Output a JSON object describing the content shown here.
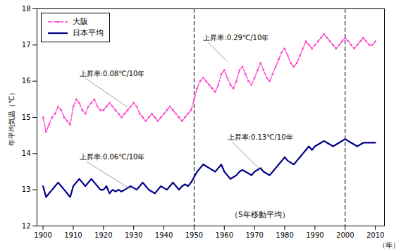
{
  "chart_data": {
    "type": "line",
    "xlabel": "（年）",
    "ylabel": "年平均気温（℃）",
    "x": [
      1900,
      1901,
      1902,
      1903,
      1904,
      1905,
      1906,
      1907,
      1908,
      1909,
      1910,
      1911,
      1912,
      1913,
      1914,
      1915,
      1916,
      1917,
      1918,
      1919,
      1920,
      1921,
      1922,
      1923,
      1924,
      1925,
      1926,
      1927,
      1928,
      1929,
      1930,
      1931,
      1932,
      1933,
      1934,
      1935,
      1936,
      1937,
      1938,
      1939,
      1940,
      1941,
      1942,
      1943,
      1944,
      1945,
      1946,
      1947,
      1948,
      1949,
      1950,
      1951,
      1952,
      1953,
      1954,
      1955,
      1956,
      1957,
      1958,
      1959,
      1960,
      1961,
      1962,
      1963,
      1964,
      1965,
      1966,
      1967,
      1968,
      1969,
      1970,
      1971,
      1972,
      1973,
      1974,
      1975,
      1976,
      1977,
      1978,
      1979,
      1980,
      1981,
      1982,
      1983,
      1984,
      1985,
      1986,
      1987,
      1988,
      1989,
      1990,
      1991,
      1992,
      1993,
      1994,
      1995,
      1996,
      1997,
      1998,
      1999,
      2000,
      2001,
      2002,
      2003,
      2004,
      2005,
      2006,
      2007,
      2008,
      2009,
      2010
    ],
    "series": [
      {
        "name": "大阪",
        "color": "#FF44CC",
        "line_style": "dashed",
        "marker": "circle",
        "values": [
          15.0,
          14.6,
          14.8,
          15.0,
          15.1,
          15.3,
          15.2,
          15.0,
          14.9,
          14.8,
          15.3,
          15.5,
          15.4,
          15.2,
          15.1,
          15.3,
          15.4,
          15.5,
          15.3,
          15.2,
          15.2,
          15.3,
          15.4,
          15.3,
          15.2,
          15.1,
          15.0,
          15.1,
          15.2,
          15.3,
          15.4,
          15.3,
          15.1,
          15.0,
          14.9,
          15.0,
          15.1,
          15.0,
          14.9,
          15.0,
          15.1,
          15.2,
          15.3,
          15.2,
          15.1,
          15.0,
          14.9,
          15.0,
          15.1,
          15.2,
          15.5,
          15.8,
          16.0,
          16.1,
          16.0,
          15.9,
          15.8,
          15.7,
          15.9,
          16.2,
          16.3,
          16.1,
          15.9,
          15.8,
          16.0,
          16.3,
          16.4,
          16.2,
          16.0,
          15.9,
          16.1,
          16.3,
          16.5,
          16.3,
          16.1,
          16.0,
          16.2,
          16.4,
          16.6,
          16.8,
          16.9,
          16.7,
          16.5,
          16.4,
          16.5,
          16.7,
          16.9,
          17.1,
          17.0,
          16.9,
          17.0,
          17.1,
          17.2,
          17.3,
          17.2,
          17.1,
          17.0,
          16.9,
          17.0,
          17.1,
          17.2,
          17.1,
          17.0,
          16.9,
          17.0,
          17.1,
          17.2,
          17.1,
          17.0,
          17.0,
          17.1
        ]
      },
      {
        "name": "日本平均",
        "color": "#00008B",
        "line_style": "solid",
        "values": [
          13.1,
          12.8,
          12.9,
          13.0,
          13.1,
          13.2,
          13.1,
          13.0,
          12.9,
          12.8,
          13.1,
          13.2,
          13.3,
          13.2,
          13.1,
          13.2,
          13.3,
          13.2,
          13.1,
          13.0,
          13.0,
          13.1,
          12.9,
          13.0,
          12.95,
          13.0,
          12.95,
          13.0,
          13.05,
          13.1,
          13.05,
          13.0,
          13.1,
          13.2,
          13.1,
          13.0,
          12.95,
          12.9,
          13.0,
          13.1,
          13.05,
          13.0,
          13.1,
          13.2,
          13.1,
          13.0,
          13.1,
          13.15,
          13.1,
          13.2,
          13.35,
          13.5,
          13.6,
          13.7,
          13.65,
          13.6,
          13.55,
          13.5,
          13.6,
          13.7,
          13.5,
          13.4,
          13.3,
          13.35,
          13.4,
          13.5,
          13.55,
          13.5,
          13.45,
          13.4,
          13.5,
          13.55,
          13.6,
          13.5,
          13.45,
          13.4,
          13.5,
          13.6,
          13.7,
          13.8,
          13.9,
          13.8,
          13.75,
          13.7,
          13.8,
          13.9,
          14.0,
          14.1,
          14.2,
          14.1,
          14.2,
          14.25,
          14.3,
          14.35,
          14.3,
          14.25,
          14.2,
          14.25,
          14.3,
          14.35,
          14.4,
          14.35,
          14.3,
          14.25,
          14.2,
          14.25,
          14.3,
          14.3,
          14.3,
          14.3,
          14.3
        ]
      }
    ],
    "xlim": [
      1898,
      2013
    ],
    "ylim": [
      12,
      18
    ],
    "xticks": [
      1900,
      1910,
      1920,
      1930,
      1940,
      1950,
      1960,
      1970,
      1980,
      1990,
      2000,
      2010
    ],
    "yticks": [
      12,
      13,
      14,
      15,
      16,
      17,
      18
    ],
    "vlines": [
      1950,
      2000
    ],
    "legend": "upper left",
    "grid": false,
    "annotations": [
      {
        "text": "上昇率:0.08℃/10年",
        "xy": [
          1928,
          15.28
        ],
        "xytext": [
          1912,
          16.2
        ]
      },
      {
        "text": "上昇率:0.06℃/10年",
        "xy": [
          1929,
          13.02
        ],
        "xytext": [
          1912,
          13.9
        ]
      },
      {
        "text": "上昇率:0.29℃/10年",
        "xy": [
          1961,
          16.55
        ],
        "xytext": [
          1953,
          17.2
        ]
      },
      {
        "text": "上昇率:0.13℃/10年",
        "xy": [
          1972,
          13.55
        ],
        "xytext": [
          1961,
          14.45
        ]
      }
    ],
    "note": {
      "text": "（5年移動平均）",
      "x": 1962,
      "y": 12.25
    }
  }
}
